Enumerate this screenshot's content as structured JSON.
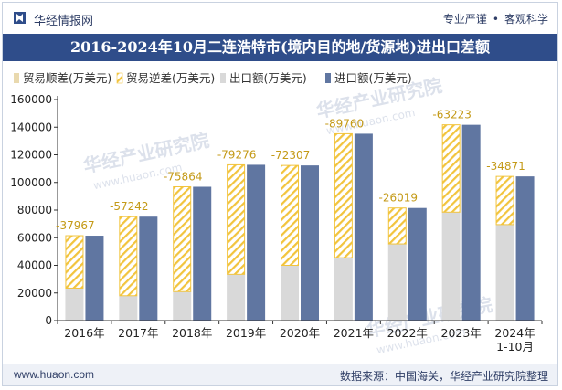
{
  "header": {
    "brand": "华经情报网",
    "tag1": "专业严谨",
    "tag2": "客观科学"
  },
  "title": "2016-2024年10月二连浩特市(境内目的地/货源地)进出口差额",
  "footer": {
    "site": "www.huaon.com",
    "source": "数据来源：中国海关，华经产业研究院整理"
  },
  "watermark": "华经产业研究院",
  "watermark_url": "www.huaon.com",
  "colors": {
    "header_bg": "#2f4d8a",
    "surplus": "#e9d9ae",
    "deficit_stripe": "#f2c43d",
    "export": "#d9d9d9",
    "import": "#6076a1"
  },
  "chart_data": {
    "type": "bar",
    "categories": [
      "2016年",
      "2017年",
      "2018年",
      "2019年",
      "2020年",
      "2021年",
      "2022年",
      "2023年",
      "2024年\n1-10月"
    ],
    "series": [
      {
        "name": "贸易顺差(万美元)",
        "values": [
          0,
          0,
          0,
          0,
          0,
          0,
          0,
          0,
          0
        ]
      },
      {
        "name": "贸易逆差(万美元)",
        "values": [
          -37967,
          -57242,
          -75864,
          -79276,
          -72307,
          -89760,
          -26019,
          -63223,
          -34871
        ]
      },
      {
        "name": "出口额(万美元)",
        "values": [
          23500,
          18000,
          21000,
          33500,
          40000,
          45500,
          55500,
          78500,
          69500
        ]
      },
      {
        "name": "进口额(万美元)",
        "values": [
          61467,
          75242,
          96864,
          112776,
          112307,
          135260,
          81519,
          141723,
          104371
        ]
      }
    ],
    "data_labels": [
      "-37967",
      "-57242",
      "-75864",
      "-79276",
      "-72307",
      "-89760",
      "-26019",
      "-63223",
      "-34871"
    ],
    "ylim": [
      0,
      160000
    ],
    "yticks": [
      "0",
      "20000",
      "40000",
      "60000",
      "80000",
      "100000",
      "120000",
      "140000",
      "160000"
    ],
    "legend_position": "top",
    "grid": false
  }
}
